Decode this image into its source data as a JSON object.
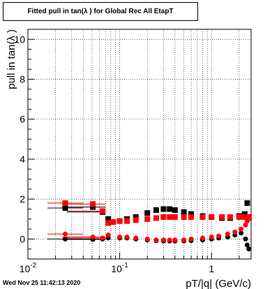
{
  "chart_data": {
    "type": "scatter",
    "title": "Fitted pull in tan(λ ) for Global Rec All EtapT",
    "xlabel": "pT/|q| (GeV/c)",
    "ylabel": "pull in tan(λ )",
    "xscale": "log",
    "xlim": [
      0.01,
      2.7
    ],
    "ylim": [
      -1.0,
      10.5
    ],
    "x_tick_labels": [
      "10^-2",
      "10^-1",
      "1"
    ],
    "y_ticks": [
      0,
      2,
      4,
      6,
      8,
      10
    ],
    "grid": true,
    "colors": {
      "black_series": "#000000",
      "red_series": "#ff0000"
    },
    "series": [
      {
        "marker": "square",
        "color": "#000000",
        "x": [
          0.0255,
          0.051,
          0.065,
          0.075,
          0.085,
          0.1,
          0.12,
          0.15,
          0.2,
          0.25,
          0.3,
          0.35,
          0.4,
          0.5,
          0.6,
          0.8,
          1.0,
          1.3,
          1.6,
          2.0,
          2.3,
          2.45,
          2.55
        ],
        "y": [
          1.55,
          1.6,
          1.35,
          1.0,
          0.85,
          0.9,
          1.0,
          1.1,
          1.3,
          1.45,
          1.5,
          1.5,
          1.45,
          1.35,
          1.25,
          1.15,
          1.1,
          1.05,
          1.05,
          1.15,
          1.25,
          1.8,
          1.1
        ]
      },
      {
        "marker": "square",
        "color": "#ff0000",
        "x": [
          0.0255,
          0.051,
          0.065,
          0.075,
          0.085,
          0.1,
          0.12,
          0.15,
          0.2,
          0.25,
          0.3,
          0.35,
          0.4,
          0.5,
          0.6,
          0.8,
          1.0,
          1.3,
          1.6,
          2.0,
          2.3,
          2.45,
          2.55
        ],
        "y": [
          1.8,
          1.75,
          1.4,
          0.8,
          0.85,
          0.9,
          0.9,
          0.95,
          1.0,
          1.05,
          1.1,
          1.1,
          1.1,
          1.1,
          1.1,
          1.1,
          1.1,
          1.1,
          1.1,
          1.1,
          1.1,
          1.1,
          1.05
        ]
      },
      {
        "marker": "circle",
        "color": "#000000",
        "x": [
          0.0255,
          0.051,
          0.065,
          0.075,
          0.1,
          0.12,
          0.15,
          0.2,
          0.25,
          0.3,
          0.35,
          0.4,
          0.5,
          0.6,
          0.8,
          1.0,
          1.2,
          1.5,
          1.8,
          2.1,
          2.35,
          2.45,
          2.55
        ],
        "y": [
          0.0,
          -0.02,
          0.0,
          0.05,
          0.05,
          0.05,
          0.0,
          -0.05,
          -0.08,
          -0.1,
          -0.1,
          -0.1,
          -0.1,
          -0.08,
          -0.05,
          0.0,
          0.05,
          0.1,
          0.2,
          0.3,
          0.0,
          -0.3,
          -0.5
        ]
      },
      {
        "marker": "circle",
        "color": "#ff0000",
        "x": [
          0.0255,
          0.051,
          0.065,
          0.075,
          0.1,
          0.12,
          0.15,
          0.2,
          0.25,
          0.3,
          0.35,
          0.4,
          0.5,
          0.6,
          0.8,
          1.0,
          1.2,
          1.5,
          1.8,
          2.1,
          2.35,
          2.45,
          2.55
        ],
        "y": [
          0.25,
          0.1,
          0.05,
          0.2,
          0.1,
          0.1,
          0.05,
          0.0,
          -0.05,
          -0.05,
          -0.05,
          -0.05,
          -0.05,
          0.0,
          0.05,
          0.1,
          0.15,
          0.25,
          0.35,
          0.5,
          0.7,
          0.9,
          1.1
        ]
      }
    ]
  },
  "timestamp": "Wed Nov 25 11:42:13 2020"
}
